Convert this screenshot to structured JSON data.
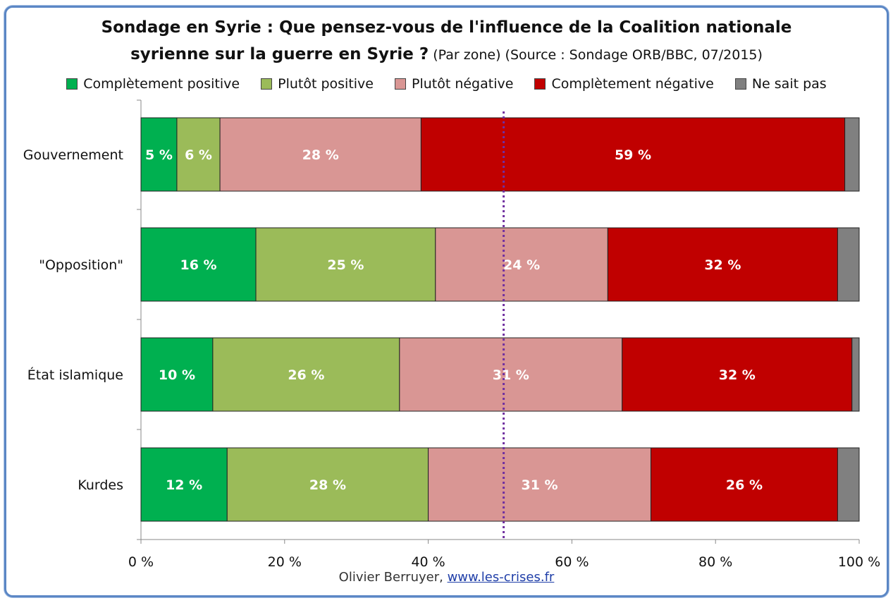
{
  "header": {
    "title_line1": "Sondage en Syrie : Que pensez-vous de l'influence de la Coalition nationale",
    "title_line2_bold": "syrienne sur la guerre en Syrie ?",
    "title_line2_rest": " (Par zone) (Source : Sondage ORB/BBC, 07/2015)"
  },
  "credit": {
    "author": "Olivier Berruyer, ",
    "link": "www.les-crises.fr"
  },
  "chart_data": {
    "type": "bar",
    "orientation": "horizontal",
    "stacked": true,
    "categories": [
      "Gouvernement",
      "\"Opposition\"",
      "État islamique",
      "Kurdes"
    ],
    "series": [
      {
        "name": "Complètement positive",
        "color": "#00b050",
        "values": [
          5,
          16,
          10,
          12
        ],
        "labels": [
          "5 %",
          "16 %",
          "10 %",
          "12 %"
        ]
      },
      {
        "name": "Plutôt positive",
        "color": "#9bbb59",
        "values": [
          6,
          25,
          26,
          28
        ],
        "labels": [
          "6 %",
          "25 %",
          "26 %",
          "28 %"
        ]
      },
      {
        "name": "Plutôt négative",
        "color": "#d99694",
        "values": [
          28,
          24,
          31,
          31
        ],
        "labels": [
          "28 %",
          "24 %",
          "31 %",
          "31 %"
        ]
      },
      {
        "name": "Complètement négative",
        "color": "#c00000",
        "values": [
          59,
          32,
          32,
          26
        ],
        "labels": [
          "59 %",
          "32 %",
          "32 %",
          "26 %"
        ]
      },
      {
        "name": "Ne sait pas",
        "color": "#808080",
        "values": [
          2,
          3,
          1,
          3
        ],
        "labels": [
          "",
          "",
          "",
          ""
        ]
      }
    ],
    "xlim": [
      0,
      100
    ],
    "xticks": [
      "0 %",
      "20 %",
      "40 %",
      "60 %",
      "80 %",
      "100 %"
    ],
    "reference_line": 50.5,
    "legend_position": "top"
  }
}
